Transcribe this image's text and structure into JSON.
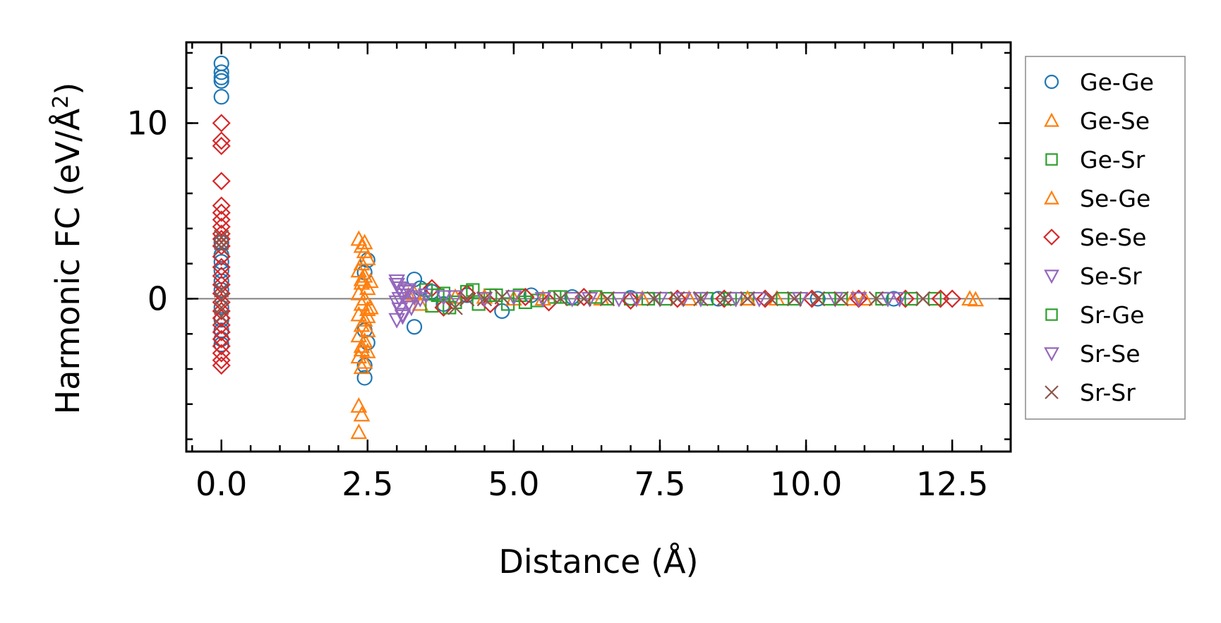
{
  "chart_data": {
    "type": "scatter",
    "title": "",
    "xlabel": "Distance (Å)",
    "ylabel": "Harmonic FC (eV/Å²)",
    "ylabel_parts": [
      "Harmonic FC (eV/Å",
      "2",
      ")"
    ],
    "xlim": [
      -0.6,
      13.5
    ],
    "ylim": [
      -8.7,
      14.6
    ],
    "xticks": [
      0.0,
      2.5,
      5.0,
      7.5,
      10.0,
      12.5
    ],
    "xtick_labels": [
      "0.0",
      "2.5",
      "5.0",
      "7.5",
      "10.0",
      "12.5"
    ],
    "yticks": [
      0,
      10
    ],
    "ytick_labels": [
      "0",
      "10"
    ],
    "x_minor_step": 0.5,
    "y_minor_step": 2,
    "zero_line": 0,
    "legend_position": "outside-right",
    "series": [
      {
        "name": "Ge-Ge",
        "marker": "circle",
        "color": "#1f77b4",
        "points": [
          [
            0,
            13.4
          ],
          [
            0,
            12.9
          ],
          [
            0,
            12.6
          ],
          [
            0,
            12.4
          ],
          [
            0,
            11.5
          ],
          [
            0,
            3.2
          ],
          [
            0,
            2.5
          ],
          [
            0,
            2.1
          ],
          [
            0,
            1.6
          ],
          [
            0,
            1.0
          ],
          [
            0,
            0.5
          ],
          [
            0,
            -0.5
          ],
          [
            0,
            -1.2
          ],
          [
            0,
            -1.8
          ],
          [
            0,
            -2.3
          ],
          [
            0,
            -2.6
          ],
          [
            2.45,
            1.5
          ],
          [
            2.5,
            2.2
          ],
          [
            2.45,
            -1.8
          ],
          [
            2.5,
            -2.5
          ],
          [
            2.45,
            -3.8
          ],
          [
            2.45,
            -4.5
          ],
          [
            3.3,
            1.1
          ],
          [
            3.3,
            -1.6
          ],
          [
            3.4,
            0.6
          ],
          [
            3.6,
            0.4
          ],
          [
            3.8,
            -0.3
          ],
          [
            4.2,
            0.2
          ],
          [
            4.8,
            -0.7
          ],
          [
            5.3,
            0.2
          ],
          [
            6.0,
            0.1
          ],
          [
            7.0,
            0.05
          ],
          [
            8.5,
            0.0
          ],
          [
            10.2,
            0.0
          ],
          [
            11.5,
            0.0
          ]
        ]
      },
      {
        "name": "Ge-Se",
        "marker": "triangle-up",
        "color": "#ff7f0e",
        "points": [
          [
            2.35,
            3.4
          ],
          [
            2.4,
            3.0
          ],
          [
            2.45,
            2.7
          ],
          [
            2.5,
            2.3
          ],
          [
            2.4,
            2.0
          ],
          [
            2.35,
            1.6
          ],
          [
            2.45,
            1.3
          ],
          [
            2.4,
            0.9
          ],
          [
            2.5,
            0.6
          ],
          [
            2.35,
            0.3
          ],
          [
            2.45,
            0.0
          ],
          [
            2.4,
            -0.3
          ],
          [
            2.5,
            -0.6
          ],
          [
            2.35,
            -0.9
          ],
          [
            2.45,
            -1.2
          ],
          [
            2.4,
            -1.5
          ],
          [
            2.5,
            -1.8
          ],
          [
            2.35,
            -2.1
          ],
          [
            2.45,
            -2.4
          ],
          [
            2.4,
            -2.7
          ],
          [
            2.5,
            -3.0
          ],
          [
            2.35,
            -3.3
          ],
          [
            2.45,
            -3.6
          ],
          [
            2.4,
            -3.9
          ],
          [
            2.35,
            -6.1
          ],
          [
            2.4,
            -6.6
          ],
          [
            2.35,
            -7.6
          ],
          [
            2.55,
            1.0
          ],
          [
            2.55,
            -0.5
          ],
          [
            3.2,
            0.2
          ],
          [
            3.4,
            -0.3
          ],
          [
            4.0,
            0.1
          ],
          [
            5.0,
            0.0
          ],
          [
            6.5,
            0.0
          ],
          [
            8.0,
            0.0
          ],
          [
            9.5,
            0.0
          ],
          [
            11.0,
            0.0
          ],
          [
            12.9,
            -0.05
          ]
        ]
      },
      {
        "name": "Ge-Sr",
        "marker": "square",
        "color": "#2ca02c",
        "points": [
          [
            3.5,
            0.5
          ],
          [
            3.6,
            -0.4
          ],
          [
            3.8,
            0.3
          ],
          [
            4.0,
            -0.2
          ],
          [
            4.2,
            0.4
          ],
          [
            4.4,
            -0.3
          ],
          [
            4.6,
            0.2
          ],
          [
            4.9,
            -0.3
          ],
          [
            5.1,
            0.2
          ],
          [
            5.4,
            -0.1
          ],
          [
            5.7,
            0.1
          ],
          [
            6.0,
            0.0
          ],
          [
            6.4,
            0.1
          ],
          [
            7.0,
            0.0
          ],
          [
            7.6,
            0.0
          ],
          [
            8.3,
            0.0
          ],
          [
            9.0,
            0.0
          ],
          [
            9.8,
            0.0
          ],
          [
            10.6,
            0.0
          ],
          [
            11.3,
            0.0
          ],
          [
            12.2,
            0.0
          ]
        ]
      },
      {
        "name": "Se-Ge",
        "marker": "triangle-up",
        "color": "#ff7f0e",
        "points": [
          [
            2.45,
            3.2
          ],
          [
            2.4,
            1.1
          ],
          [
            2.5,
            -1.0
          ],
          [
            2.4,
            -2.9
          ],
          [
            3.3,
            0.3
          ],
          [
            4.5,
            0.1
          ],
          [
            5.5,
            0.0
          ],
          [
            7.2,
            0.0
          ],
          [
            9.0,
            0.0
          ],
          [
            10.8,
            0.0
          ],
          [
            12.8,
            0.0
          ]
        ]
      },
      {
        "name": "Se-Se",
        "marker": "diamond",
        "color": "#d62728",
        "points": [
          [
            0,
            10.0
          ],
          [
            0,
            9.0
          ],
          [
            0,
            8.7
          ],
          [
            0,
            6.7
          ],
          [
            0,
            5.3
          ],
          [
            0,
            4.9
          ],
          [
            0,
            4.5
          ],
          [
            0,
            4.1
          ],
          [
            0,
            3.7
          ],
          [
            0,
            3.4
          ],
          [
            0,
            3.0
          ],
          [
            0,
            2.4
          ],
          [
            0,
            1.8
          ],
          [
            0,
            1.3
          ],
          [
            0,
            0.8
          ],
          [
            0,
            0.3
          ],
          [
            0,
            -0.2
          ],
          [
            0,
            -0.7
          ],
          [
            0,
            -1.1
          ],
          [
            0,
            -1.5
          ],
          [
            0,
            -1.9
          ],
          [
            0,
            -2.3
          ],
          [
            0,
            -2.7
          ],
          [
            0,
            -3.1
          ],
          [
            0,
            -3.5
          ],
          [
            0,
            -3.8
          ],
          [
            3.6,
            0.6
          ],
          [
            3.8,
            -0.5
          ],
          [
            4.2,
            0.3
          ],
          [
            4.6,
            -0.3
          ],
          [
            5.2,
            0.1
          ],
          [
            5.6,
            -0.2
          ],
          [
            6.2,
            0.1
          ],
          [
            7.0,
            -0.1
          ],
          [
            7.8,
            0.0
          ],
          [
            8.6,
            0.0
          ],
          [
            9.3,
            0.0
          ],
          [
            10.1,
            0.0
          ],
          [
            10.9,
            0.0
          ],
          [
            11.7,
            0.0
          ],
          [
            12.3,
            0.0
          ],
          [
            12.5,
            0.0
          ]
        ]
      },
      {
        "name": "Se-Sr",
        "marker": "triangle-down",
        "color": "#9467bd",
        "points": [
          [
            3.0,
            1.0
          ],
          [
            3.05,
            0.6
          ],
          [
            3.1,
            0.2
          ],
          [
            3.0,
            -0.2
          ],
          [
            3.05,
            -0.6
          ],
          [
            3.1,
            -0.9
          ],
          [
            3.0,
            -1.2
          ],
          [
            3.15,
            0.4
          ],
          [
            3.2,
            -0.3
          ],
          [
            3.3,
            0.1
          ],
          [
            3.5,
            0.2
          ],
          [
            4.0,
            0.1
          ],
          [
            5.0,
            0.1
          ],
          [
            6.0,
            0.0
          ],
          [
            6.8,
            0.0
          ],
          [
            7.5,
            0.0
          ],
          [
            8.2,
            0.0
          ],
          [
            9.2,
            0.0
          ],
          [
            10.5,
            0.0
          ],
          [
            11.6,
            0.0
          ]
        ]
      },
      {
        "name": "Sr-Ge",
        "marker": "square",
        "color": "#2ca02c",
        "points": [
          [
            3.7,
            0.2
          ],
          [
            3.9,
            -0.5
          ],
          [
            4.3,
            0.5
          ],
          [
            4.7,
            0.2
          ],
          [
            5.2,
            -0.2
          ],
          [
            5.8,
            0.1
          ],
          [
            6.6,
            0.0
          ],
          [
            7.3,
            0.0
          ],
          [
            8.7,
            0.0
          ],
          [
            9.6,
            0.0
          ],
          [
            10.4,
            0.0
          ],
          [
            11.8,
            0.0
          ]
        ]
      },
      {
        "name": "Sr-Se",
        "marker": "triangle-down",
        "color": "#9467bd",
        "points": [
          [
            3.0,
            0.8
          ],
          [
            3.05,
            0.0
          ],
          [
            3.1,
            -1.0
          ],
          [
            3.2,
            0.5
          ],
          [
            3.25,
            -0.5
          ],
          [
            3.4,
            0.0
          ],
          [
            3.8,
            0.1
          ],
          [
            4.5,
            0.0
          ],
          [
            5.5,
            0.0
          ],
          [
            6.3,
            0.0
          ],
          [
            7.1,
            0.0
          ],
          [
            7.9,
            0.0
          ],
          [
            8.8,
            0.0
          ],
          [
            9.9,
            0.0
          ],
          [
            10.9,
            0.0
          ],
          [
            11.4,
            0.0
          ]
        ]
      },
      {
        "name": "Sr-Sr",
        "marker": "x",
        "color": "#8c564b",
        "points": [
          [
            0,
            3.5
          ],
          [
            0,
            3.2
          ],
          [
            0,
            2.9
          ],
          [
            0,
            0.5
          ],
          [
            0,
            0.0
          ],
          [
            0,
            -0.5
          ],
          [
            0,
            -1.0
          ],
          [
            4.0,
            -0.5
          ],
          [
            4.2,
            0.0
          ],
          [
            4.5,
            0.0
          ],
          [
            4.8,
            0.1
          ],
          [
            5.8,
            0.0
          ],
          [
            6.2,
            0.0
          ],
          [
            6.6,
            0.0
          ],
          [
            7.4,
            0.0
          ],
          [
            7.8,
            0.0
          ],
          [
            8.2,
            0.0
          ],
          [
            8.6,
            0.0
          ],
          [
            9.0,
            0.0
          ],
          [
            9.4,
            0.0
          ],
          [
            9.8,
            0.0
          ],
          [
            10.2,
            0.0
          ],
          [
            10.6,
            0.0
          ],
          [
            11.2,
            0.0
          ],
          [
            12.0,
            0.0
          ]
        ]
      }
    ]
  }
}
